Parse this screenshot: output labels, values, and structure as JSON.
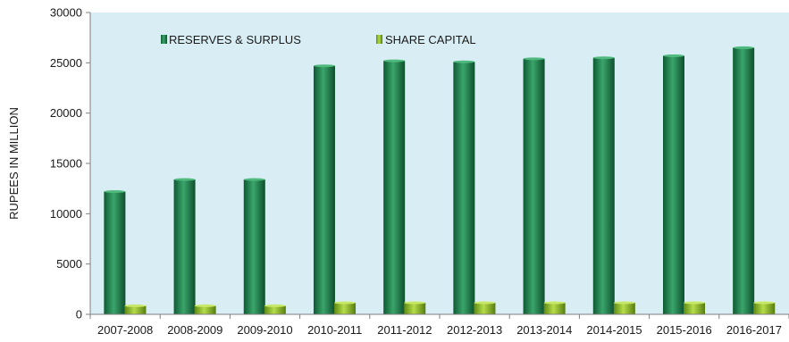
{
  "chart_data": {
    "type": "bar",
    "title": "",
    "xlabel": "",
    "ylabel": "RUPEES IN MILLION",
    "ylim": [
      0,
      30000
    ],
    "yticks": [
      0,
      5000,
      10000,
      15000,
      20000,
      25000,
      30000
    ],
    "grid": false,
    "legend_position": "top-left",
    "categories": [
      "2007-2008",
      "2008-2009",
      "2009-2010",
      "2010-2011",
      "2011-2012",
      "2012-2013",
      "2013-2014",
      "2014-2015",
      "2015-2016",
      "2016-2017"
    ],
    "series": [
      {
        "name": "RESERVES & SURPLUS",
        "color": "#1f7a4a",
        "values": [
          12200,
          13400,
          13400,
          24700,
          25200,
          25100,
          25400,
          25500,
          25700,
          26500
        ]
      },
      {
        "name": "SHARE CAPITAL",
        "color": "#8ab82a",
        "values": [
          850,
          850,
          850,
          1150,
          1150,
          1150,
          1150,
          1150,
          1150,
          1150
        ]
      }
    ],
    "plot_background": "#d9eef4"
  }
}
